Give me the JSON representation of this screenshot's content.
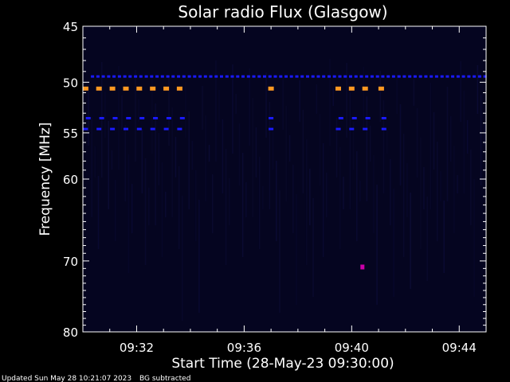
{
  "chart_data": {
    "type": "heatmap",
    "title": "Solar radio Flux (Glasgow)",
    "xlabel": "Start Time (28-May-23 09:30:00)",
    "ylabel": "Frequency [MHz]",
    "x_ticks": [
      "09:32",
      "09:36",
      "09:40",
      "09:44"
    ],
    "x_tick_minutes": [
      2,
      6,
      10,
      14
    ],
    "x_range_minutes": [
      0,
      15
    ],
    "y_ticks": [
      45,
      50,
      55,
      60,
      70,
      80
    ],
    "y_range_mhz": [
      45,
      80
    ],
    "y_scale": "log",
    "colors": {
      "background": "#000000",
      "plot_area": "#050520",
      "interference_line": "#1a1aff",
      "strong_signal": "#ff9922",
      "burst": "#cc00aa"
    },
    "signals": [
      {
        "freq_mhz": 49.5,
        "kind": "interference_line",
        "t_start_min": 0.3,
        "t_end_min": 15.0
      },
      {
        "freq_mhz": 50.6,
        "kind": "strong_signal",
        "t_minutes": [
          0.1,
          0.6,
          1.1,
          1.6,
          2.1,
          2.6,
          3.1,
          3.6,
          7.0,
          9.5,
          10.0,
          10.5,
          11.1
        ]
      },
      {
        "freq_mhz": 53.5,
        "kind": "interference_line",
        "t_minutes": [
          0.2,
          0.7,
          1.2,
          1.7,
          2.2,
          2.7,
          3.2,
          3.7,
          7.0,
          9.6,
          10.1,
          10.6,
          11.2
        ]
      },
      {
        "freq_mhz": 54.6,
        "kind": "interference_line",
        "t_minutes": [
          0.1,
          0.6,
          1.1,
          1.6,
          2.1,
          2.6,
          3.1,
          3.6,
          7.0,
          9.5,
          10.0,
          10.5,
          11.2
        ]
      },
      {
        "freq_mhz": 70.8,
        "kind": "burst",
        "t_minutes": [
          10.4
        ]
      }
    ]
  },
  "footer": {
    "updated": "Updated Sun May 28 10:21:07 2023",
    "note": "BG subtracted"
  }
}
